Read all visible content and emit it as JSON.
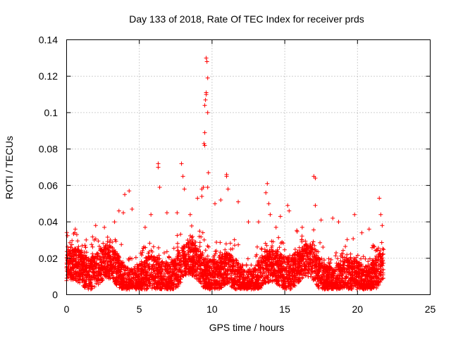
{
  "chart_data": {
    "type": "scatter",
    "title": "Day 133 of 2018, Rate Of TEC Index for receiver prds",
    "xlabel": "GPS time / hours",
    "ylabel": "ROTI / TECUs",
    "xlim": [
      0,
      25
    ],
    "ylim": [
      0,
      0.14
    ],
    "x_ticks": [
      "0",
      "5",
      "10",
      "15",
      "20",
      "25"
    ],
    "y_ticks": [
      "0",
      "0.02",
      "0.04",
      "0.06",
      "0.08",
      "0.1",
      "0.12",
      "0.14"
    ],
    "grid": true,
    "marker": "+",
    "color": "#ff0000",
    "data_span_hours": [
      0,
      21.8
    ],
    "points": [
      [
        0.3,
        0.026
      ],
      [
        0.6,
        0.036
      ],
      [
        0.7,
        0.033
      ],
      [
        1.3,
        0.026
      ],
      [
        1.9,
        0.03
      ],
      [
        2.0,
        0.038
      ],
      [
        2.6,
        0.037
      ],
      [
        3.0,
        0.03
      ],
      [
        3.3,
        0.04
      ],
      [
        3.6,
        0.046
      ],
      [
        3.9,
        0.045
      ],
      [
        4.0,
        0.055
      ],
      [
        4.3,
        0.057
      ],
      [
        4.5,
        0.047
      ],
      [
        5.4,
        0.037
      ],
      [
        5.8,
        0.044
      ],
      [
        6.3,
        0.072
      ],
      [
        6.3,
        0.07
      ],
      [
        6.4,
        0.059
      ],
      [
        6.9,
        0.045
      ],
      [
        7.6,
        0.045
      ],
      [
        7.9,
        0.072
      ],
      [
        8.0,
        0.065
      ],
      [
        8.1,
        0.058
      ],
      [
        8.5,
        0.044
      ],
      [
        9.0,
        0.053
      ],
      [
        9.3,
        0.054
      ],
      [
        9.3,
        0.058
      ],
      [
        9.4,
        0.059
      ],
      [
        9.45,
        0.083
      ],
      [
        9.5,
        0.089
      ],
      [
        9.5,
        0.082
      ],
      [
        9.5,
        0.104
      ],
      [
        9.55,
        0.107
      ],
      [
        9.6,
        0.111
      ],
      [
        9.6,
        0.11
      ],
      [
        9.6,
        0.13
      ],
      [
        9.65,
        0.128
      ],
      [
        9.7,
        0.119
      ],
      [
        9.7,
        0.1
      ],
      [
        9.75,
        0.067
      ],
      [
        9.7,
        0.059
      ],
      [
        10.2,
        0.05
      ],
      [
        10.6,
        0.052
      ],
      [
        11.0,
        0.066
      ],
      [
        11.0,
        0.065
      ],
      [
        11.1,
        0.058
      ],
      [
        11.8,
        0.051
      ],
      [
        12.5,
        0.04
      ],
      [
        13.2,
        0.04
      ],
      [
        13.7,
        0.056
      ],
      [
        13.8,
        0.061
      ],
      [
        13.9,
        0.05
      ],
      [
        14.0,
        0.044
      ],
      [
        14.4,
        0.037
      ],
      [
        14.7,
        0.043
      ],
      [
        15.2,
        0.049
      ],
      [
        15.3,
        0.046
      ],
      [
        16.2,
        0.037
      ],
      [
        17.0,
        0.065
      ],
      [
        17.1,
        0.064
      ],
      [
        17.1,
        0.049
      ],
      [
        17.5,
        0.041
      ],
      [
        18.3,
        0.042
      ],
      [
        18.7,
        0.04
      ],
      [
        19.8,
        0.044
      ],
      [
        20.3,
        0.034
      ],
      [
        20.8,
        0.036
      ],
      [
        21.5,
        0.053
      ],
      [
        21.6,
        0.044
      ],
      [
        21.7,
        0.038
      ]
    ]
  }
}
